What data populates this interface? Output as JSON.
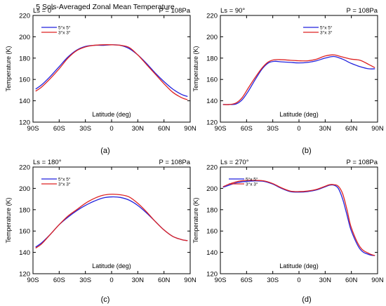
{
  "figure": {
    "title": "5 Sols-Averaged Zonal Mean Temperature"
  },
  "colors": {
    "axis": "#000000",
    "series_5x5": "#2222dd",
    "series_3x3": "#dd2222"
  },
  "chart_data": [
    {
      "type": "line",
      "label": "(a)",
      "left_text": "Ls = 0°",
      "right_text": "P = 108Pa",
      "xlabel": "Latitude (deg)",
      "ylabel": "Temperature (K)",
      "xlim": [
        -90,
        90
      ],
      "ylim": [
        120,
        220
      ],
      "xticks": [
        -90,
        -60,
        -30,
        0,
        30,
        60,
        90
      ],
      "xtick_labels": [
        "90S",
        "60S",
        "30S",
        "0",
        "30N",
        "60N",
        "90N"
      ],
      "yticks": [
        120,
        140,
        160,
        180,
        200,
        220
      ],
      "legend_position": "top-left",
      "x": [
        -87,
        -80,
        -70,
        -60,
        -50,
        -40,
        -30,
        -20,
        -10,
        0,
        10,
        20,
        30,
        40,
        50,
        60,
        70,
        80,
        87
      ],
      "series": [
        {
          "name": "5°x 5°",
          "color": "#2222dd",
          "values": [
            151,
            155,
            163,
            172,
            181,
            187.5,
            191,
            192,
            192,
            192.5,
            192,
            189,
            183,
            175,
            166,
            158,
            151,
            146,
            144
          ]
        },
        {
          "name": "3°x 3°",
          "color": "#dd2222",
          "values": [
            149,
            153,
            161,
            170,
            180,
            187,
            190.5,
            192,
            192.5,
            192.5,
            192,
            190,
            183,
            174,
            165,
            156,
            148,
            143,
            141
          ]
        }
      ]
    },
    {
      "type": "line",
      "label": "(b)",
      "left_text": "Ls = 90°",
      "right_text": "P = 108Pa",
      "xlabel": "Latitude (deg)",
      "ylabel": "Temperature (K)",
      "xlim": [
        -90,
        90
      ],
      "ylim": [
        120,
        220
      ],
      "xticks": [
        -90,
        -60,
        -30,
        0,
        30,
        60,
        90
      ],
      "xtick_labels": [
        "90S",
        "60S",
        "30S",
        "0",
        "30N",
        "60N",
        "90N"
      ],
      "yticks": [
        120,
        140,
        160,
        180,
        200,
        220
      ],
      "legend_position": "top-right",
      "x": [
        -87,
        -80,
        -72,
        -65,
        -58,
        -50,
        -42,
        -35,
        -28,
        -20,
        -10,
        0,
        10,
        20,
        30,
        40,
        50,
        60,
        70,
        80,
        87
      ],
      "series": [
        {
          "name": "5°x 5°",
          "color": "#2222dd",
          "values": [
            136.5,
            136.5,
            137,
            141,
            149,
            160,
            170,
            175.5,
            177,
            176.5,
            176,
            175.5,
            176,
            177.5,
            180,
            181.5,
            179,
            175,
            172,
            170,
            170
          ]
        },
        {
          "name": "3°x 3°",
          "color": "#dd2222",
          "values": [
            136.5,
            136.5,
            138,
            143,
            152,
            162,
            171,
            176.5,
            178.5,
            178.5,
            178,
            177.5,
            177.5,
            179,
            182,
            183,
            181,
            179,
            178,
            174,
            171
          ]
        }
      ]
    },
    {
      "type": "line",
      "label": "(c)",
      "left_text": "Ls = 180°",
      "right_text": "P = 108Pa",
      "xlabel": "Latitude (deg)",
      "ylabel": "Temperature (K)",
      "xlim": [
        -90,
        90
      ],
      "ylim": [
        120,
        220
      ],
      "xticks": [
        -90,
        -60,
        -30,
        0,
        30,
        60,
        90
      ],
      "xtick_labels": [
        "90S",
        "60S",
        "30S",
        "0",
        "30N",
        "60N",
        "90N"
      ],
      "yticks": [
        120,
        140,
        160,
        180,
        200,
        220
      ],
      "legend_position": "top-left",
      "x": [
        -87,
        -80,
        -70,
        -60,
        -50,
        -40,
        -30,
        -20,
        -10,
        0,
        10,
        20,
        30,
        40,
        50,
        60,
        70,
        80,
        87
      ],
      "series": [
        {
          "name": "5°x 5°",
          "color": "#2222dd",
          "values": [
            145,
            149,
            157,
            166,
            173,
            179,
            184,
            188,
            191,
            192,
            191.5,
            189,
            184,
            177,
            169,
            161,
            155,
            152,
            151
          ]
        },
        {
          "name": "3°x 3°",
          "color": "#dd2222",
          "values": [
            144,
            148,
            157,
            166,
            174,
            180,
            186,
            190.5,
            193.5,
            194.5,
            194,
            192,
            186,
            178,
            169,
            161,
            155,
            152,
            151
          ]
        }
      ]
    },
    {
      "type": "line",
      "label": "(d)",
      "left_text": "Ls = 270°",
      "right_text": "P = 108Pa",
      "xlabel": "Latitude (deg)",
      "ylabel": "Temperature (K)",
      "xlim": [
        -90,
        90
      ],
      "ylim": [
        120,
        220
      ],
      "xticks": [
        -90,
        -60,
        -30,
        0,
        30,
        60,
        90
      ],
      "xtick_labels": [
        "90S",
        "60S",
        "30S",
        "0",
        "30N",
        "60N",
        "90N"
      ],
      "yticks": [
        120,
        140,
        160,
        180,
        200,
        220
      ],
      "legend_position": "top-left",
      "x": [
        -87,
        -80,
        -70,
        -60,
        -50,
        -40,
        -30,
        -20,
        -10,
        0,
        10,
        20,
        30,
        35,
        40,
        45,
        50,
        55,
        60,
        70,
        80,
        87
      ],
      "series": [
        {
          "name": "5°x 5°",
          "color": "#2222dd",
          "values": [
            201,
            203,
            205.5,
            206.5,
            207,
            206.5,
            204,
            200,
            197,
            196.5,
            197,
            198.5,
            201.5,
            203,
            203,
            200,
            190,
            175,
            160,
            143,
            138,
            137
          ]
        },
        {
          "name": "3°x 3°",
          "color": "#dd2222",
          "values": [
            201.5,
            204,
            206.5,
            207.5,
            207.5,
            207,
            204.5,
            200.5,
            197.5,
            197,
            197.5,
            199,
            202,
            203.5,
            203.5,
            202,
            195,
            180,
            163,
            145,
            139,
            137
          ]
        }
      ]
    }
  ]
}
